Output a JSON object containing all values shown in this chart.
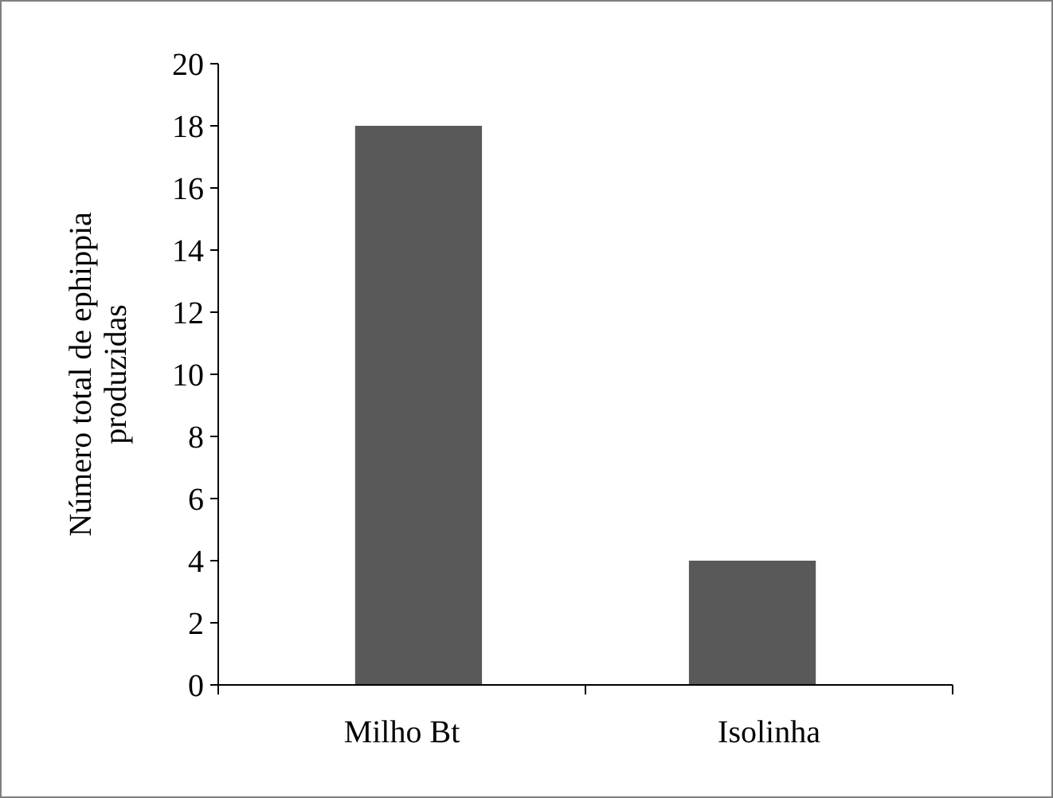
{
  "chart_data": {
    "type": "bar",
    "ylabel": "Número total de ephippia\nproduzidas",
    "categories": [
      "Milho Bt",
      "Isolinha"
    ],
    "values": [
      18,
      4
    ],
    "color": "#595959",
    "ylim": [
      0,
      20
    ],
    "yticks": [
      0,
      2,
      4,
      6,
      8,
      10,
      12,
      14,
      16,
      18,
      20
    ],
    "grid": false
  }
}
